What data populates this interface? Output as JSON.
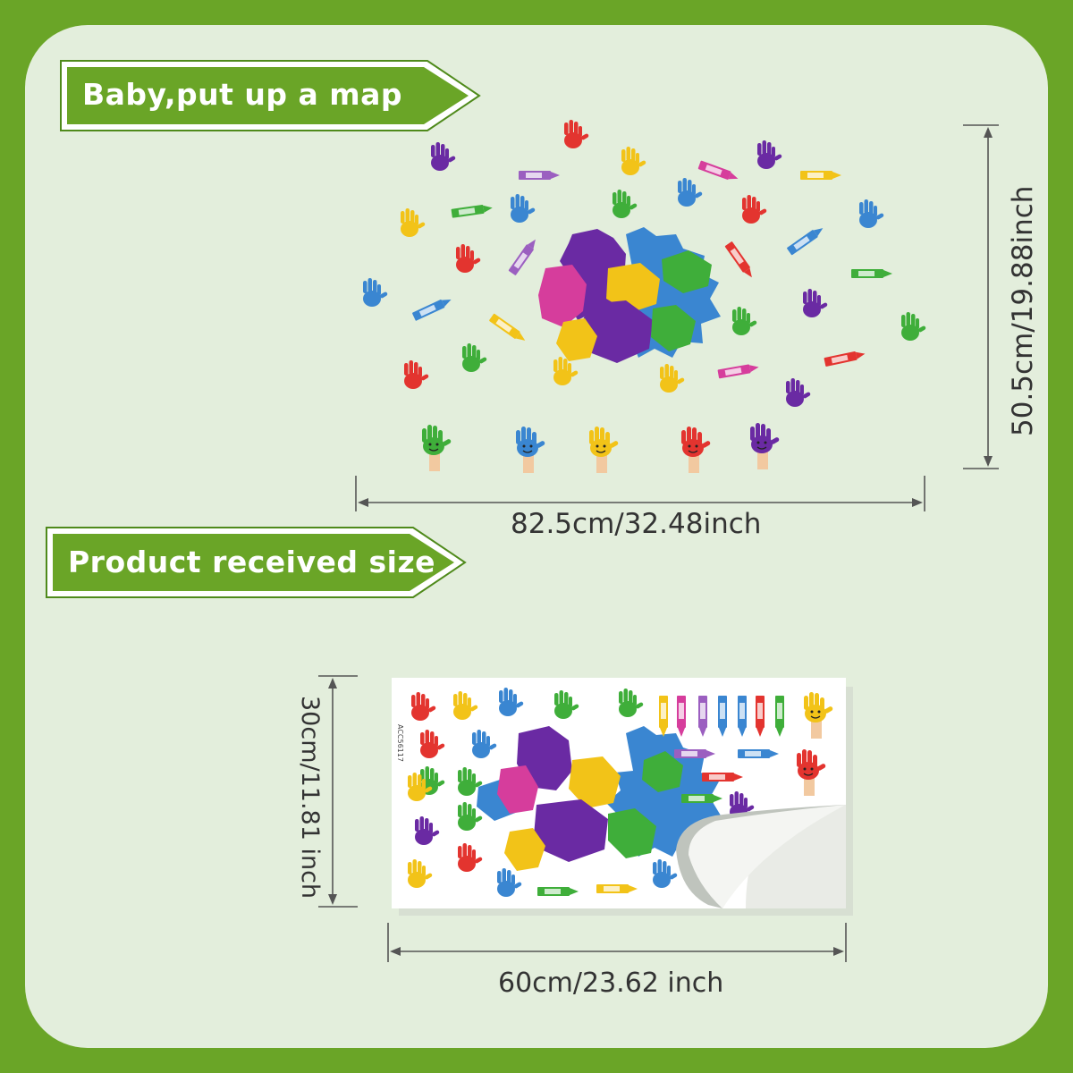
{
  "banners": {
    "top": "Baby,put up a map",
    "bottom": "Product received size"
  },
  "installed": {
    "width_label": "82.5cm/32.48inch",
    "height_label": "50.5cm/19.88inch"
  },
  "sheet": {
    "code": "ACC56117",
    "width_label": "60cm/23.62 inch",
    "height_label": "30cm/11.81 inch"
  },
  "colors": {
    "frame": "#6aa527",
    "panel": "#e3eedc",
    "banner_fill": "#6aa527",
    "banner_border": "#ffffff",
    "dimension_text": "#333333",
    "paint_purple": "#6a2aa3",
    "paint_blue": "#3a86d1",
    "paint_green": "#3fae3a",
    "paint_yellow": "#f2c318",
    "paint_pink": "#d63d9c",
    "paint_red": "#e3342f"
  }
}
